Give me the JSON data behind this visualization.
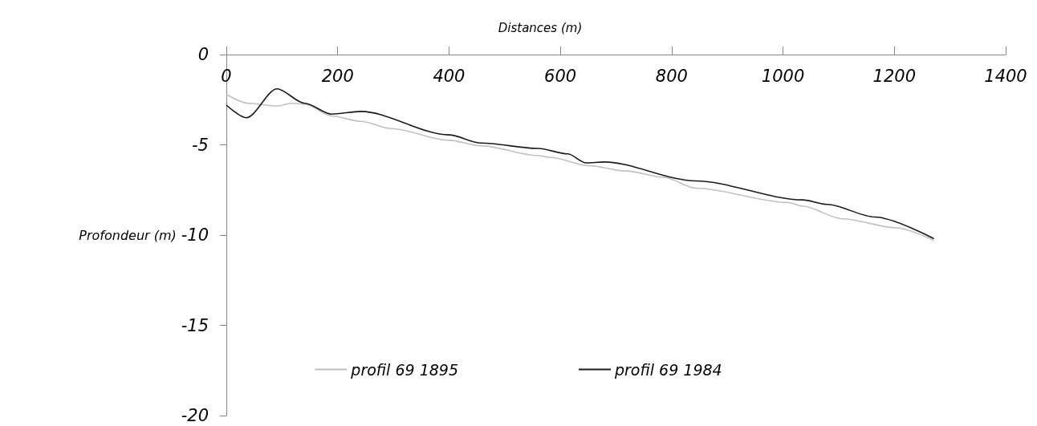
{
  "chart_data": {
    "type": "line",
    "xlabel": "Distances (m)",
    "ylabel": "Profondeur (m)",
    "xlim": [
      0,
      1400
    ],
    "xticks": [
      0,
      200,
      400,
      600,
      800,
      1000,
      1200,
      1400
    ],
    "ylim": [
      -20,
      0
    ],
    "yticks": [
      -20,
      -15,
      -10,
      -5,
      0
    ],
    "grid": false,
    "legend": "bottom",
    "marker": "none",
    "line_style": "solid",
    "series": [
      {
        "name": "profil 69 1895",
        "color": "#c0c0c0",
        "x": [
          0,
          40,
          91,
          117,
          141,
          189,
          242,
          296,
          400,
          457,
          560,
          582,
          650,
          718,
          786,
          843,
          1010,
          1035,
          1107,
          1204,
          1271
        ],
        "values": [
          -2.2,
          -2.7,
          -2.85,
          -2.7,
          -2.75,
          -3.4,
          -3.7,
          -4.1,
          -4.75,
          -5.05,
          -5.6,
          -5.7,
          -6.15,
          -6.45,
          -6.8,
          -7.4,
          -8.2,
          -8.4,
          -9.1,
          -9.6,
          -10.3
        ]
      },
      {
        "name": "profil 69 1984",
        "color": "#1a1a1a",
        "x": [
          0,
          36,
          91,
          141,
          189,
          242,
          400,
          457,
          560,
          613,
          646,
          679,
          843,
          1035,
          1079,
          1165,
          1271
        ],
        "values": [
          -2.8,
          -3.5,
          -1.9,
          -2.7,
          -3.3,
          -3.15,
          -4.45,
          -4.9,
          -5.2,
          -5.5,
          -6.0,
          -5.95,
          -7.0,
          -8.05,
          -8.3,
          -9.0,
          -10.2
        ]
      }
    ]
  }
}
